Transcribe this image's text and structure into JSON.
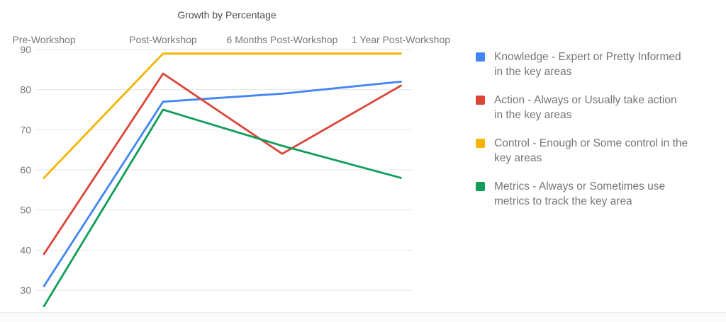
{
  "chart_data": {
    "type": "line",
    "title": "Growth by Percentage",
    "categories": [
      "Pre-Workshop",
      "Post-Workshop",
      "6 Months Post-Workshop",
      "1 Year Post-Workshop"
    ],
    "series": [
      {
        "id": "knowledge",
        "name": "Knowledge - Expert or Pretty Informed in the key areas",
        "color": "#4285F4",
        "values": [
          31,
          77,
          79,
          82
        ]
      },
      {
        "id": "action",
        "name": "Action - Always or Usually take action in the key areas",
        "color": "#DB4437",
        "values": [
          39,
          84,
          64,
          81
        ]
      },
      {
        "id": "control",
        "name": "Control - Enough or Some control in the key areas",
        "color": "#F4B400",
        "values": [
          58,
          89,
          89,
          89
        ]
      },
      {
        "id": "metrics",
        "name": "Metrics - Always or Sometimes use metrics to track the key area",
        "color": "#0F9D58",
        "values": [
          26,
          75,
          66,
          58
        ]
      }
    ],
    "xlabel": "",
    "ylabel": "",
    "ylim": [
      30,
      90
    ],
    "y_ticks": [
      30,
      40,
      50,
      60,
      70,
      80,
      90
    ],
    "grid": "horizontal-only",
    "legend_position": "right",
    "x_labels_position": "top"
  },
  "legend": {
    "items": [
      {
        "label": "Knowledge - Expert or Pretty Informed\nin the key areas",
        "color": "#4285F4"
      },
      {
        "label": "Action - Always or Usually take action\nin the key areas",
        "color": "#DB4437"
      },
      {
        "label": "Control - Enough or Some control in the\nkey areas",
        "color": "#F4B400"
      },
      {
        "label": "Metrics - Always or Sometimes use\nmetrics to track the key area",
        "color": "#0F9D58"
      }
    ]
  }
}
